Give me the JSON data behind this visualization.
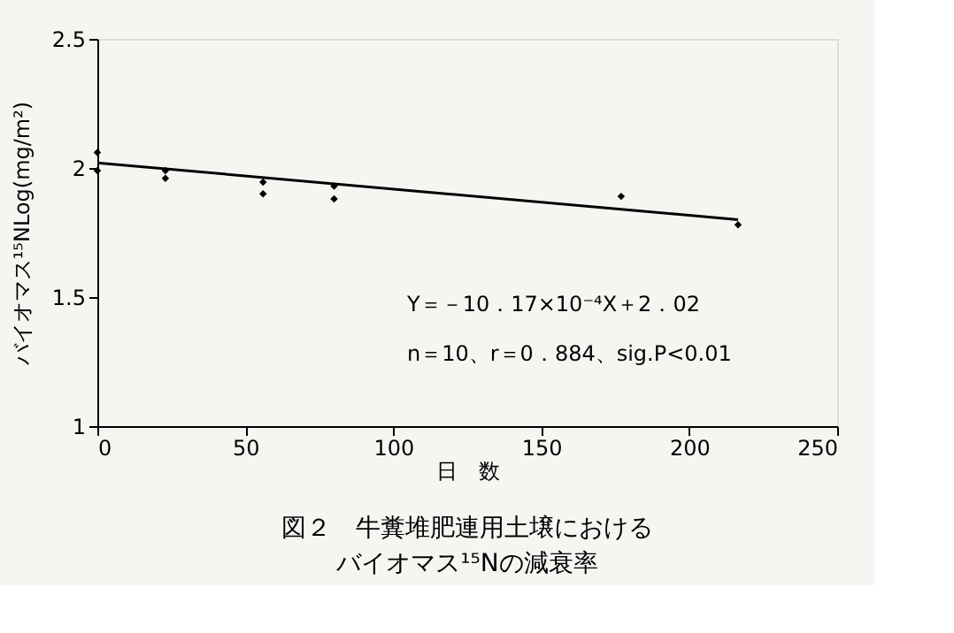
{
  "chart_data": {
    "type": "scatter",
    "title": "図２　牛糞堆肥連用土壌におけるバイオマス¹⁵Nの減衰率",
    "xlabel": "日　数",
    "ylabel": "バイオマス¹⁵NLog(mg/m²)",
    "xlim": [
      0,
      250
    ],
    "xticks": [
      0,
      50,
      100,
      150,
      200,
      250
    ],
    "ylim": [
      1,
      2.5
    ],
    "yticks": [
      1,
      1.5,
      2,
      2.5
    ],
    "grid": false,
    "series": [
      {
        "marker": "diamond",
        "color": "#000000",
        "x": [
          0,
          0,
          23,
          23,
          56,
          56,
          80,
          80,
          177,
          216.5
        ],
        "values": [
          2.06,
          1.99,
          1.99,
          1.96,
          1.945,
          1.9,
          1.93,
          1.88,
          1.89,
          1.78
        ]
      },
      {
        "type": "line",
        "color": "#000000",
        "line_style": "solid",
        "x": [
          0,
          216.5
        ],
        "values": [
          2.02,
          1.8
        ]
      }
    ],
    "annotations": [
      "Y＝－10．17×10⁻⁴X＋2．02",
      "n＝10、r＝0．884、sig.P<0.01"
    ]
  }
}
